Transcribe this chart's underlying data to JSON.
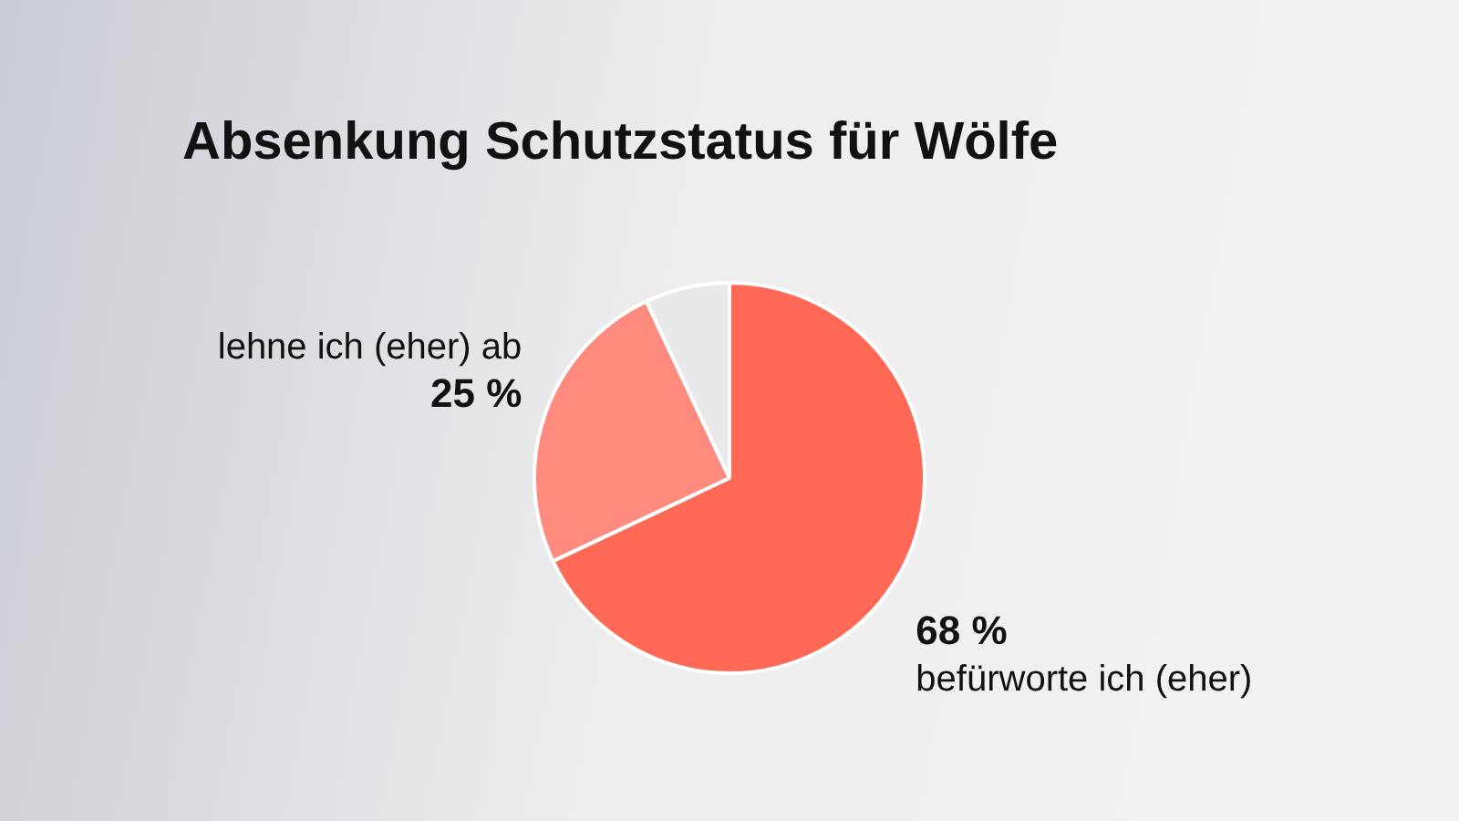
{
  "chart_data": {
    "type": "pie",
    "title": "Absenkung Schutzstatus für Wölfe",
    "categories": [
      "befürworte ich (eher)",
      "lehne ich (eher) ab",
      null
    ],
    "values": [
      68,
      25,
      7
    ],
    "colors": [
      "#ff6955",
      "#fe8b7e",
      "#e9e9e9"
    ],
    "value_labels": [
      "68 %",
      "25 %",
      null
    ],
    "legend": false
  }
}
